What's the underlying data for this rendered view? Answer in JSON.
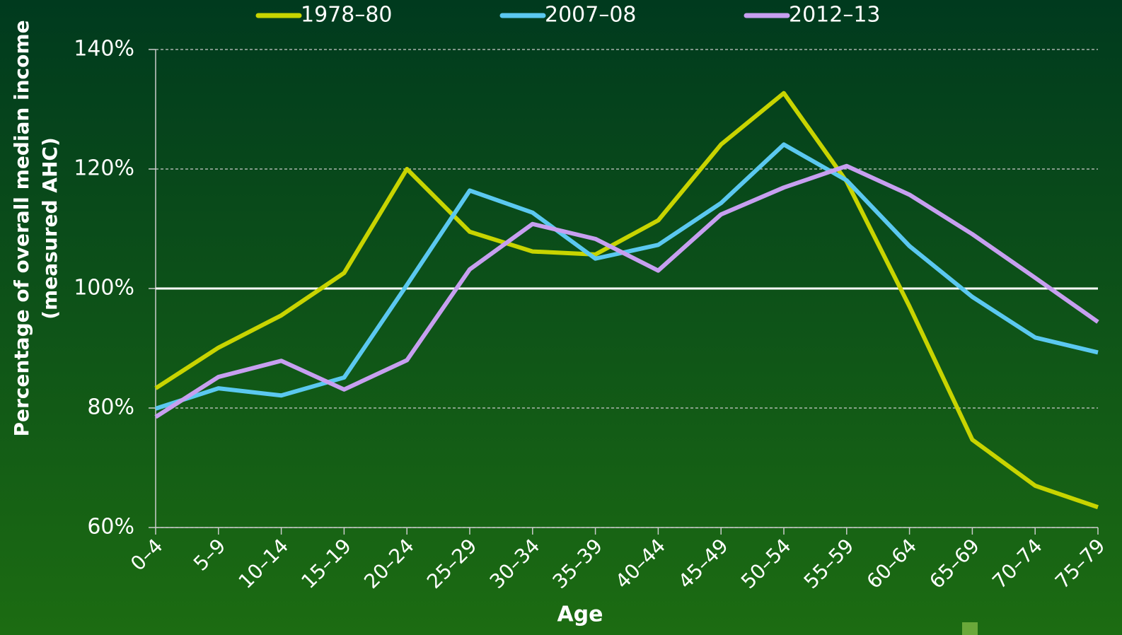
{
  "chart_data": {
    "type": "line",
    "x_label": "Age",
    "y_label": [
      "Percentage of overall median income",
      "(measured AHC)"
    ],
    "categories": [
      "0–4",
      "5–9",
      "10–14",
      "15–19",
      "20–24",
      "25–29",
      "30–34",
      "35–39",
      "40–44",
      "45–49",
      "50–54",
      "55–59",
      "60–64",
      "65–69",
      "70–74",
      "75–79"
    ],
    "series": [
      {
        "name": "1978–80",
        "color": "#c8d400",
        "values": [
          83.3,
          90.1,
          95.5,
          102.6,
          120,
          109.5,
          106.2,
          105.7,
          111.4,
          124.1,
          132.7,
          117.9,
          97,
          74.7,
          67,
          63.4
        ]
      },
      {
        "name": "2007–08",
        "color": "#5bc8f0",
        "values": [
          79.9,
          83.3,
          82.1,
          85.1,
          100.6,
          116.4,
          112.7,
          105,
          107.3,
          114.3,
          124.1,
          118.1,
          107.1,
          98.6,
          91.8,
          89.3
        ]
      },
      {
        "name": "2012–13",
        "color": "#c79ff0",
        "values": [
          78.5,
          85.2,
          87.9,
          83.1,
          88,
          103.2,
          110.8,
          108.3,
          103,
          112.4,
          116.9,
          120.5,
          115.7,
          109.1,
          101.8,
          94.4
        ]
      }
    ],
    "ylim": [
      60,
      140
    ],
    "yticks": [
      {
        "value": 60,
        "label": "60%"
      },
      {
        "value": 80,
        "label": "80%"
      },
      {
        "value": 100,
        "label": "100%"
      },
      {
        "value": 120,
        "label": "120%"
      },
      {
        "value": 140,
        "label": "140%"
      }
    ],
    "reference_line": 100,
    "grid": true,
    "legend": "top"
  }
}
